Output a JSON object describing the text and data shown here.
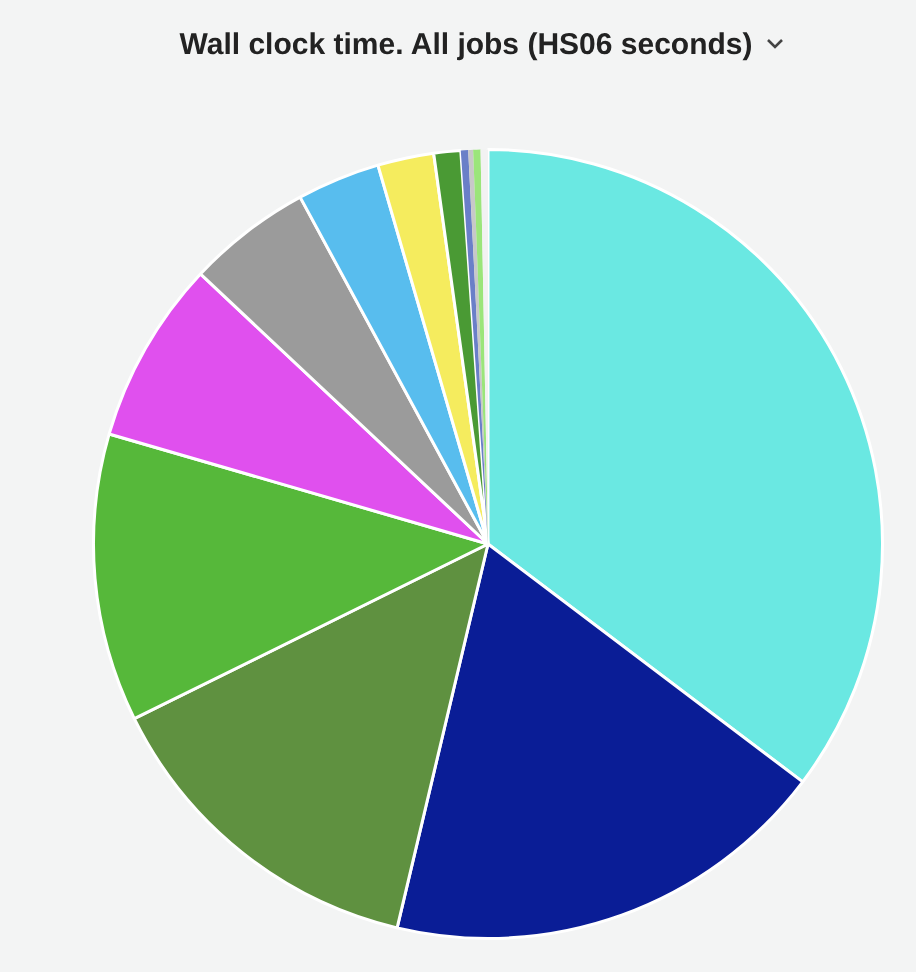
{
  "chart_data": {
    "type": "pie",
    "title": "Wall clock time. All jobs (HS06 seconds)",
    "categories": [
      null,
      null,
      null,
      null,
      null,
      null,
      null,
      null,
      null,
      null,
      null,
      null,
      null
    ],
    "values": [
      35.3,
      18.4,
      14.0,
      11.8,
      7.5,
      5.1,
      3.4,
      2.3,
      1.1,
      0.3,
      0.2,
      0.3,
      0.3
    ],
    "colors": [
      "#6ae8e2",
      "#0a1d96",
      "#5f9140",
      "#56b83a",
      "#e050ee",
      "#9b9b9b",
      "#58bdee",
      "#f5ec5e",
      "#4a9a34",
      "#6a7fc8",
      "#c8c8c8",
      "#9be57a",
      "#f2f2f2"
    ],
    "legend": false
  }
}
